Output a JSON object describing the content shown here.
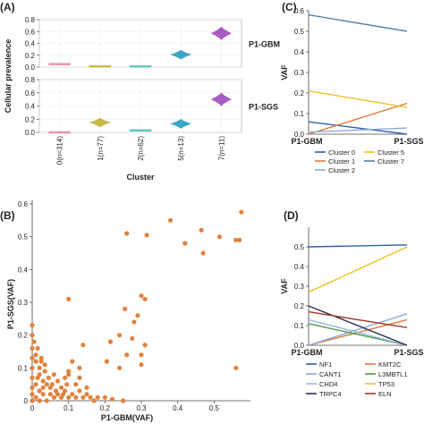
{
  "panel_labels": {
    "a": "(A)",
    "b": "(B)",
    "c": "(C)",
    "d": "(D)"
  },
  "chart_data": [
    {
      "panel": "A",
      "type": "violin",
      "ylabel": "Cellular prevalence",
      "xlabel": "Cluster",
      "categories": [
        "0(n=314)",
        "1(n=77)",
        "2(n=62)",
        "5(n=13)",
        "7(n=11)"
      ],
      "colors": [
        "#e88fb0",
        "#c9b84a",
        "#5dc8b5",
        "#3aa6c4",
        "#a95bc4"
      ],
      "yticks": [
        "0.0",
        "0.2",
        "0.4",
        "0.6",
        "0.8"
      ],
      "ylim": [
        0,
        0.8
      ],
      "facets": [
        {
          "name": "P1-GBM",
          "values": [
            0.05,
            0.01,
            0.01,
            0.21,
            0.57
          ]
        },
        {
          "name": "P1-SGS",
          "values": [
            0.0,
            0.15,
            0.03,
            0.13,
            0.5
          ]
        }
      ]
    },
    {
      "panel": "B",
      "type": "scatter",
      "xlabel": "P1-GBM(VAF)",
      "ylabel": "P1-SGS(VAF)",
      "xlim": [
        0,
        0.6
      ],
      "ylim": [
        0,
        0.6
      ],
      "xticks": [
        "0",
        "0.1",
        "0.2",
        "0.3",
        "0.4",
        "0.5"
      ],
      "yticks": [
        "0",
        "0.1",
        "0.2",
        "0.3",
        "0.4",
        "0.5",
        "0.6"
      ],
      "color": "#e0823d",
      "points": [
        [
          0.575,
          0.575
        ],
        [
          0.56,
          0.49
        ],
        [
          0.57,
          0.49
        ],
        [
          0.515,
          0.5
        ],
        [
          0.465,
          0.52
        ],
        [
          0.42,
          0.48
        ],
        [
          0.38,
          0.55
        ],
        [
          0.26,
          0.51
        ],
        [
          0.315,
          0.505
        ],
        [
          0.47,
          0.45
        ],
        [
          0.3,
          0.32
        ],
        [
          0.31,
          0.31
        ],
        [
          0.255,
          0.28
        ],
        [
          0.1,
          0.31
        ],
        [
          0.29,
          0.26
        ],
        [
          0.28,
          0.24
        ],
        [
          0.24,
          0.2
        ],
        [
          0.215,
          0.18
        ],
        [
          0.31,
          0.17
        ],
        [
          0.275,
          0.19
        ],
        [
          0.26,
          0.14
        ],
        [
          0.3,
          0.14
        ],
        [
          0.24,
          0.1
        ],
        [
          0.56,
          0.1
        ],
        [
          0.3,
          0.11
        ],
        [
          0.205,
          0.12
        ],
        [
          0.14,
          0.17
        ],
        [
          0.11,
          0.12
        ],
        [
          0.13,
          0.1
        ],
        [
          0.13,
          0.07
        ],
        [
          0.1,
          0.09
        ],
        [
          0.1,
          0.08
        ],
        [
          0.09,
          0.07
        ],
        [
          0.07,
          0.06
        ],
        [
          0.06,
          0.08
        ],
        [
          0.08,
          0.04
        ],
        [
          0.12,
          0.05
        ],
        [
          0.15,
          0.04
        ],
        [
          0.13,
          0.03
        ],
        [
          0.11,
          0.02
        ],
        [
          0.09,
          0.03
        ],
        [
          0.07,
          0.02
        ],
        [
          0.05,
          0.04
        ],
        [
          0.04,
          0.05
        ],
        [
          0.03,
          0.06
        ],
        [
          0.02,
          0.08
        ],
        [
          0.02,
          0.1
        ],
        [
          0.01,
          0.12
        ],
        [
          0.01,
          0.14
        ],
        [
          0.0,
          0.16
        ],
        [
          0.0,
          0.2
        ],
        [
          0.0,
          0.23
        ],
        [
          0.005,
          0.18
        ],
        [
          0.01,
          0.05
        ],
        [
          0.02,
          0.03
        ],
        [
          0.03,
          0.02
        ],
        [
          0.05,
          0.02
        ],
        [
          0.06,
          0.01
        ],
        [
          0.08,
          0.01
        ],
        [
          0.1,
          0.01
        ],
        [
          0.12,
          0.01
        ],
        [
          0.14,
          0.01
        ],
        [
          0.16,
          0.01
        ],
        [
          0.18,
          0.01
        ],
        [
          0.2,
          0.01
        ],
        [
          0.22,
          0.005
        ],
        [
          0.0,
          0.0
        ],
        [
          0.0,
          0.02
        ],
        [
          0.01,
          0.01
        ],
        [
          0.02,
          0.0
        ],
        [
          0.04,
          0.0
        ],
        [
          0.0,
          0.04
        ],
        [
          0.0,
          0.07
        ],
        [
          0.0,
          0.1
        ],
        [
          0.0,
          0.13
        ],
        [
          0.015,
          0.16
        ],
        [
          0.025,
          0.13
        ],
        [
          0.035,
          0.09
        ],
        [
          0.045,
          0.07
        ],
        [
          0.055,
          0.05
        ],
        [
          0.025,
          0.12
        ],
        [
          0.035,
          0.11
        ],
        [
          0.015,
          0.07
        ],
        [
          0.03,
          0.04
        ],
        [
          0.065,
          0.03
        ],
        [
          0.085,
          0.02
        ],
        [
          0.095,
          0.05
        ],
        [
          0.15,
          0.02
        ],
        [
          0.17,
          0.0
        ],
        [
          0.25,
          0.0
        ]
      ]
    },
    {
      "panel": "C",
      "type": "line",
      "ylabel": "VAF",
      "categories": [
        "P1-GBM",
        "P1-SGS"
      ],
      "ylim": [
        0,
        0.6
      ],
      "yticks": [
        "0.0",
        "0.1",
        "0.2",
        "0.3",
        "0.4",
        "0.5",
        "0.6"
      ],
      "series": [
        {
          "name": "Cluster 0",
          "color": "#3060a8",
          "values": [
            0.06,
            0.0
          ]
        },
        {
          "name": "Cluster 1",
          "color": "#e07a3a",
          "values": [
            0.0,
            0.15
          ]
        },
        {
          "name": "Cluster 2",
          "color": "#8aaad8",
          "values": [
            0.01,
            0.03
          ]
        },
        {
          "name": "Cluster 5",
          "color": "#f0c020",
          "values": [
            0.21,
            0.13
          ]
        },
        {
          "name": "Cluster 7",
          "color": "#5a7eb0",
          "values": [
            0.58,
            0.5
          ]
        }
      ],
      "legend_order": [
        "Cluster 0",
        "Cluster 5",
        "Cluster 1",
        "Cluster 7",
        "Cluster 2"
      ]
    },
    {
      "panel": "D",
      "type": "line",
      "ylabel": "VAF",
      "categories": [
        "P1-GBM",
        "P1-SGS"
      ],
      "ylim": [
        0,
        0.6
      ],
      "yticks": [
        "0.0",
        "0.1",
        "0.2",
        "0.3",
        "0.4",
        "0.5"
      ],
      "series": [
        {
          "name": "NF1",
          "color": "#3060a8",
          "values": [
            0.5,
            0.51
          ]
        },
        {
          "name": "KMT2C",
          "color": "#e07a3a",
          "values": [
            0.0,
            0.13
          ]
        },
        {
          "name": "CANT1",
          "color": "#8aaad8",
          "values": [
            0.0,
            0.16
          ]
        },
        {
          "name": "L3MBTL1",
          "color": "#4a9a48",
          "values": [
            0.11,
            0.0
          ]
        },
        {
          "name": "CHD4",
          "color": "#9ab8dc",
          "values": [
            0.13,
            0.0
          ]
        },
        {
          "name": "TP53",
          "color": "#f0c020",
          "values": [
            0.27,
            0.5
          ]
        },
        {
          "name": "TRPC4",
          "color": "#2a3050",
          "values": [
            0.2,
            0.0
          ]
        },
        {
          "name": "ELN",
          "color": "#a03a28",
          "values": [
            0.17,
            0.09
          ]
        }
      ]
    }
  ]
}
